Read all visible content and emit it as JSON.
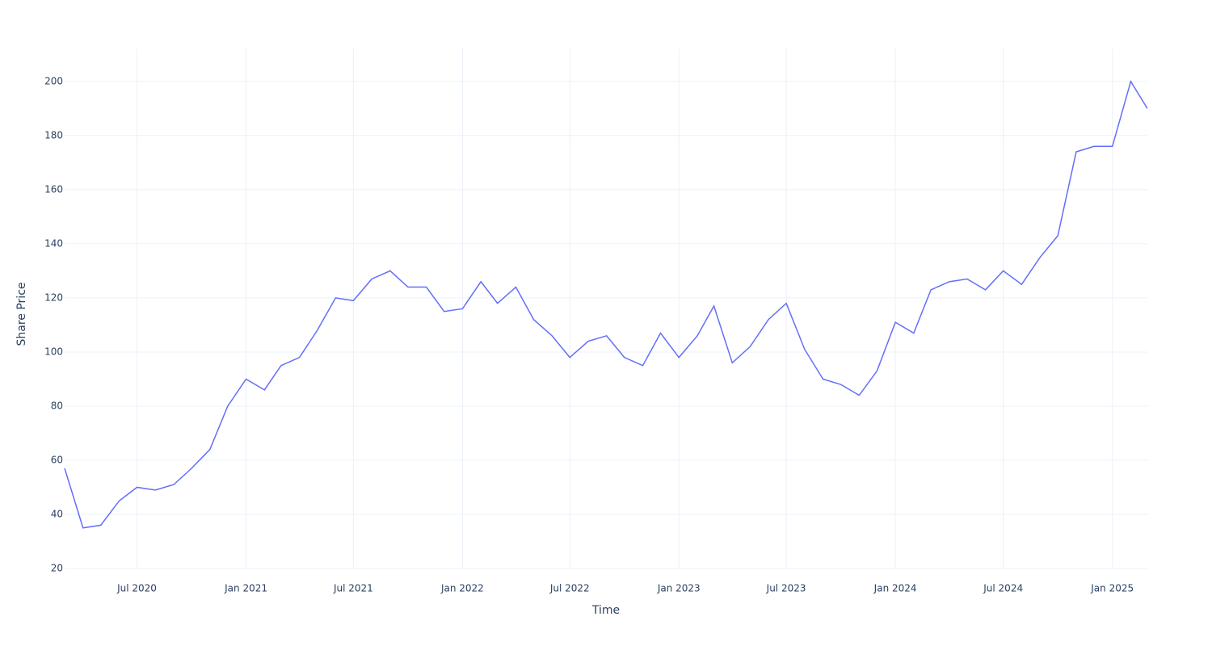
{
  "chart_data": {
    "type": "line",
    "x_label": "Time",
    "y_label": "Share Price",
    "x": [
      "2020-03",
      "2020-04",
      "2020-05",
      "2020-06",
      "2020-07",
      "2020-08",
      "2020-09",
      "2020-10",
      "2020-11",
      "2020-12",
      "2021-01",
      "2021-02",
      "2021-03",
      "2021-04",
      "2021-05",
      "2021-06",
      "2021-07",
      "2021-08",
      "2021-09",
      "2021-10",
      "2021-11",
      "2021-12",
      "2022-01",
      "2022-02",
      "2022-03",
      "2022-04",
      "2022-05",
      "2022-06",
      "2022-07",
      "2022-08",
      "2022-09",
      "2022-10",
      "2022-11",
      "2022-12",
      "2023-01",
      "2023-02",
      "2023-03",
      "2023-04",
      "2023-05",
      "2023-06",
      "2023-07",
      "2023-08",
      "2023-09",
      "2023-10",
      "2023-11",
      "2023-12",
      "2024-01",
      "2024-02",
      "2024-03",
      "2024-04",
      "2024-05",
      "2024-06",
      "2024-07",
      "2024-08",
      "2024-09",
      "2024-10",
      "2024-11",
      "2024-12",
      "2025-01",
      "2025-02",
      "2025-03"
    ],
    "series": [
      {
        "name": "Share Price",
        "color": "#636efa",
        "values": [
          57,
          35,
          36,
          45,
          50,
          49,
          51,
          57,
          64,
          80,
          90,
          86,
          95,
          98,
          108,
          120,
          119,
          127,
          130,
          124,
          124,
          115,
          116,
          126,
          118,
          124,
          112,
          106,
          98,
          104,
          106,
          98,
          95,
          107,
          98,
          106,
          117,
          96,
          102,
          112,
          118,
          101,
          90,
          88,
          84,
          93,
          111,
          107,
          123,
          126,
          127,
          123,
          130,
          125,
          135,
          143,
          174,
          176,
          176,
          200,
          190
        ]
      }
    ],
    "xlim": [
      "2020-03",
      "2025-03"
    ],
    "xticks": [
      {
        "value": "2020-07",
        "label": "Jul 2020"
      },
      {
        "value": "2021-01",
        "label": "Jan 2021"
      },
      {
        "value": "2021-07",
        "label": "Jul 2021"
      },
      {
        "value": "2022-01",
        "label": "Jan 2022"
      },
      {
        "value": "2022-07",
        "label": "Jul 2022"
      },
      {
        "value": "2023-01",
        "label": "Jan 2023"
      },
      {
        "value": "2023-07",
        "label": "Jul 2023"
      },
      {
        "value": "2024-01",
        "label": "Jan 2024"
      },
      {
        "value": "2024-07",
        "label": "Jul 2024"
      },
      {
        "value": "2025-01",
        "label": "Jan 2025"
      }
    ],
    "ylim": [
      19.7,
      212.2
    ],
    "yticks": [
      20,
      40,
      60,
      80,
      100,
      120,
      140,
      160,
      180,
      200
    ],
    "grid": true
  }
}
